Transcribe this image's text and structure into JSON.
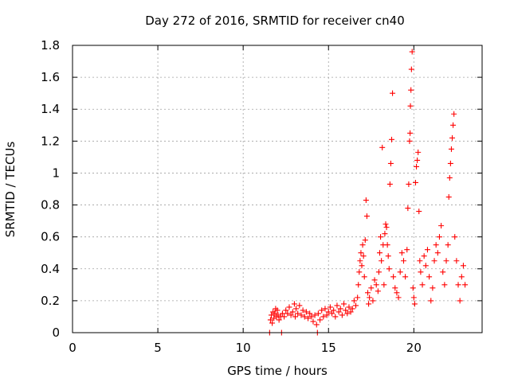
{
  "chart_data": {
    "type": "scatter",
    "title": "Day 272 of 2016, SRMTID for receiver cn40",
    "xlabel": "GPS time / hours",
    "ylabel": "SRMTID / TECUs",
    "xlim": [
      0,
      24
    ],
    "ylim": [
      0,
      1.8
    ],
    "xticks": [
      0,
      5,
      10,
      15,
      20
    ],
    "yticks": [
      0,
      0.2,
      0.4,
      0.6,
      0.8,
      1,
      1.2,
      1.4,
      1.6,
      1.8
    ],
    "grid": true,
    "marker": "+",
    "color": "#ff0000",
    "series": [
      {
        "name": "SRMTID",
        "points": [
          [
            11.55,
            0.0
          ],
          [
            11.6,
            0.08
          ],
          [
            11.65,
            0.11
          ],
          [
            11.7,
            0.06
          ],
          [
            11.75,
            0.13
          ],
          [
            11.8,
            0.09
          ],
          [
            11.85,
            0.12
          ],
          [
            11.9,
            0.15
          ],
          [
            11.95,
            0.1
          ],
          [
            12.0,
            0.14
          ],
          [
            12.05,
            0.11
          ],
          [
            12.1,
            0.08
          ],
          [
            12.2,
            0.1
          ],
          [
            12.25,
            0.0
          ],
          [
            12.3,
            0.12
          ],
          [
            12.4,
            0.1
          ],
          [
            12.5,
            0.14
          ],
          [
            12.6,
            0.12
          ],
          [
            12.7,
            0.16
          ],
          [
            12.8,
            0.11
          ],
          [
            12.9,
            0.13
          ],
          [
            13.0,
            0.18
          ],
          [
            13.05,
            0.1
          ],
          [
            13.1,
            0.15
          ],
          [
            13.2,
            0.12
          ],
          [
            13.3,
            0.17
          ],
          [
            13.4,
            0.11
          ],
          [
            13.5,
            0.14
          ],
          [
            13.6,
            0.1
          ],
          [
            13.7,
            0.13
          ],
          [
            13.8,
            0.09
          ],
          [
            13.9,
            0.12
          ],
          [
            14.0,
            0.1
          ],
          [
            14.1,
            0.07
          ],
          [
            14.2,
            0.11
          ],
          [
            14.3,
            0.05
          ],
          [
            14.35,
            0.0
          ],
          [
            14.4,
            0.12
          ],
          [
            14.5,
            0.08
          ],
          [
            14.6,
            0.14
          ],
          [
            14.7,
            0.1
          ],
          [
            14.8,
            0.15
          ],
          [
            14.9,
            0.11
          ],
          [
            15.0,
            0.13
          ],
          [
            15.1,
            0.16
          ],
          [
            15.2,
            0.12
          ],
          [
            15.3,
            0.14
          ],
          [
            15.4,
            0.1
          ],
          [
            15.5,
            0.17
          ],
          [
            15.6,
            0.13
          ],
          [
            15.7,
            0.15
          ],
          [
            15.8,
            0.11
          ],
          [
            15.9,
            0.18
          ],
          [
            16.0,
            0.14
          ],
          [
            16.1,
            0.12
          ],
          [
            16.2,
            0.16
          ],
          [
            16.3,
            0.13
          ],
          [
            16.4,
            0.15
          ],
          [
            16.5,
            0.2
          ],
          [
            16.6,
            0.17
          ],
          [
            16.7,
            0.22
          ],
          [
            16.75,
            0.3
          ],
          [
            16.8,
            0.38
          ],
          [
            16.85,
            0.45
          ],
          [
            16.9,
            0.5
          ],
          [
            16.95,
            0.42
          ],
          [
            17.0,
            0.55
          ],
          [
            17.05,
            0.48
          ],
          [
            17.1,
            0.35
          ],
          [
            17.15,
            0.58
          ],
          [
            17.2,
            0.83
          ],
          [
            17.25,
            0.73
          ],
          [
            17.3,
            0.25
          ],
          [
            17.35,
            0.18
          ],
          [
            17.4,
            0.22
          ],
          [
            17.5,
            0.28
          ],
          [
            17.6,
            0.2
          ],
          [
            17.7,
            0.33
          ],
          [
            17.8,
            0.3
          ],
          [
            17.9,
            0.26
          ],
          [
            17.95,
            0.38
          ],
          [
            18.0,
            0.5
          ],
          [
            18.05,
            0.6
          ],
          [
            18.1,
            0.45
          ],
          [
            18.15,
            1.16
          ],
          [
            18.2,
            0.55
          ],
          [
            18.25,
            0.3
          ],
          [
            18.3,
            0.62
          ],
          [
            18.35,
            0.68
          ],
          [
            18.4,
            0.66
          ],
          [
            18.45,
            0.55
          ],
          [
            18.5,
            0.48
          ],
          [
            18.55,
            0.4
          ],
          [
            18.6,
            0.93
          ],
          [
            18.65,
            1.06
          ],
          [
            18.7,
            1.21
          ],
          [
            18.75,
            1.5
          ],
          [
            18.8,
            0.35
          ],
          [
            18.9,
            0.28
          ],
          [
            19.0,
            0.25
          ],
          [
            19.1,
            0.22
          ],
          [
            19.2,
            0.38
          ],
          [
            19.3,
            0.5
          ],
          [
            19.4,
            0.45
          ],
          [
            19.5,
            0.35
          ],
          [
            19.6,
            0.52
          ],
          [
            19.65,
            0.78
          ],
          [
            19.7,
            0.93
          ],
          [
            19.75,
            1.2
          ],
          [
            19.78,
            1.25
          ],
          [
            19.8,
            1.42
          ],
          [
            19.83,
            1.52
          ],
          [
            19.86,
            1.65
          ],
          [
            19.9,
            1.76
          ],
          [
            19.95,
            0.28
          ],
          [
            20.0,
            0.22
          ],
          [
            20.05,
            0.18
          ],
          [
            20.1,
            0.94
          ],
          [
            20.15,
            1.04
          ],
          [
            20.2,
            1.08
          ],
          [
            20.25,
            1.13
          ],
          [
            20.3,
            0.76
          ],
          [
            20.35,
            0.45
          ],
          [
            20.4,
            0.38
          ],
          [
            20.5,
            0.3
          ],
          [
            20.6,
            0.48
          ],
          [
            20.7,
            0.42
          ],
          [
            20.8,
            0.52
          ],
          [
            20.9,
            0.35
          ],
          [
            21.0,
            0.2
          ],
          [
            21.1,
            0.28
          ],
          [
            21.2,
            0.45
          ],
          [
            21.3,
            0.55
          ],
          [
            21.4,
            0.5
          ],
          [
            21.5,
            0.6
          ],
          [
            21.6,
            0.67
          ],
          [
            21.7,
            0.38
          ],
          [
            21.8,
            0.3
          ],
          [
            21.9,
            0.45
          ],
          [
            22.0,
            0.55
          ],
          [
            22.05,
            0.85
          ],
          [
            22.1,
            0.97
          ],
          [
            22.15,
            1.06
          ],
          [
            22.2,
            1.15
          ],
          [
            22.25,
            1.22
          ],
          [
            22.3,
            1.3
          ],
          [
            22.35,
            1.37
          ],
          [
            22.4,
            0.6
          ],
          [
            22.5,
            0.45
          ],
          [
            22.6,
            0.3
          ],
          [
            22.7,
            0.2
          ],
          [
            22.8,
            0.35
          ],
          [
            22.9,
            0.42
          ],
          [
            23.0,
            0.3
          ]
        ]
      }
    ]
  }
}
